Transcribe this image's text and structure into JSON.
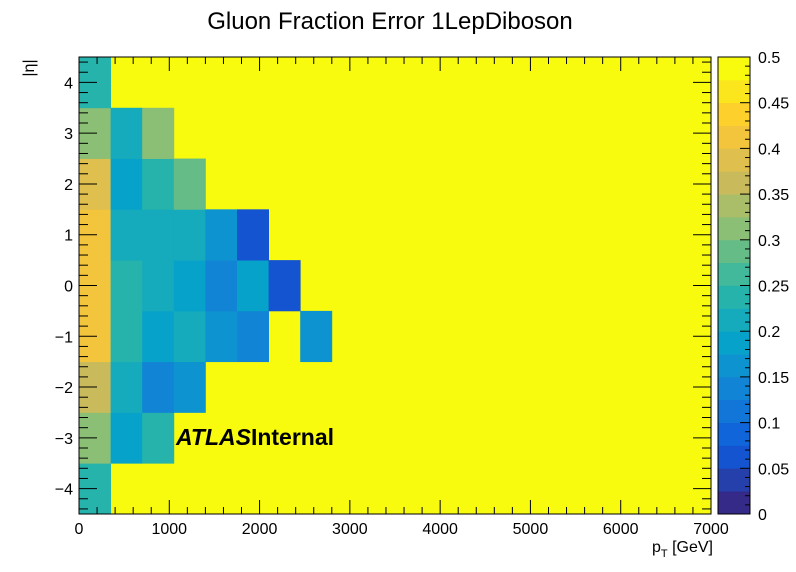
{
  "chart_data": {
    "type": "heatmap",
    "title": "Gluon Fraction Error 1LepDiboson",
    "xlabel": {
      "main": "p",
      "sub": "T",
      "unit": " [GeV]"
    },
    "ylabel": "|η|",
    "xlim": [
      0,
      7000
    ],
    "ylim": [
      -4.5,
      4.5
    ],
    "zlim": [
      0,
      0.5
    ],
    "x_ticks": [
      0,
      1000,
      2000,
      3000,
      4000,
      5000,
      6000,
      7000
    ],
    "y_ticks": [
      -4,
      -3,
      -2,
      -1,
      0,
      1,
      2,
      3,
      4
    ],
    "z_ticks": [
      0,
      0.05,
      0.1,
      0.15,
      0.2,
      0.25,
      0.3,
      0.35,
      0.4,
      0.45,
      0.5
    ],
    "x_tick_labels": [
      "0",
      "1000",
      "2000",
      "3000",
      "4000",
      "5000",
      "6000",
      "7000"
    ],
    "y_tick_labels": [
      "−4",
      "−3",
      "−2",
      "−1",
      "0",
      "1",
      "2",
      "3",
      "4"
    ],
    "z_tick_labels": [
      "0",
      "0.05",
      "0.1",
      "0.15",
      "0.2",
      "0.25",
      "0.3",
      "0.35",
      "0.4",
      "0.45",
      "0.5"
    ],
    "x_edges": [
      0,
      350,
      700,
      1050,
      1400,
      1750,
      2100,
      2450,
      2800,
      7000
    ],
    "y_edges": [
      -4.5,
      -3.5,
      -2.5,
      -1.5,
      -0.5,
      0.5,
      1.5,
      2.5,
      3.5,
      4.5
    ],
    "default_value": 0.5,
    "cells": [
      {
        "x": [
          0,
          350
        ],
        "y": [
          -4.5,
          -3.5
        ],
        "z": 0.24
      },
      {
        "x": [
          0,
          350
        ],
        "y": [
          -3.5,
          -2.5
        ],
        "z": 0.3
      },
      {
        "x": [
          350,
          700
        ],
        "y": [
          -3.5,
          -2.5
        ],
        "z": 0.19
      },
      {
        "x": [
          700,
          1050
        ],
        "y": [
          -3.5,
          -2.5
        ],
        "z": 0.23
      },
      {
        "x": [
          0,
          350
        ],
        "y": [
          -2.5,
          -1.5
        ],
        "z": 0.36
      },
      {
        "x": [
          350,
          700
        ],
        "y": [
          -2.5,
          -1.5
        ],
        "z": 0.21
      },
      {
        "x": [
          700,
          1050
        ],
        "y": [
          -2.5,
          -1.5
        ],
        "z": 0.14
      },
      {
        "x": [
          1050,
          1400
        ],
        "y": [
          -2.5,
          -1.5
        ],
        "z": 0.17
      },
      {
        "x": [
          0,
          350
        ],
        "y": [
          -1.5,
          -0.5
        ],
        "z": 0.4
      },
      {
        "x": [
          350,
          700
        ],
        "y": [
          -1.5,
          -0.5
        ],
        "z": 0.24
      },
      {
        "x": [
          700,
          1050
        ],
        "y": [
          -1.5,
          -0.5
        ],
        "z": 0.18
      },
      {
        "x": [
          1050,
          1400
        ],
        "y": [
          -1.5,
          -0.5
        ],
        "z": 0.22
      },
      {
        "x": [
          1400,
          1750
        ],
        "y": [
          -1.5,
          -0.5
        ],
        "z": 0.17
      },
      {
        "x": [
          1750,
          2100
        ],
        "y": [
          -1.5,
          -0.5
        ],
        "z": 0.13
      },
      {
        "x": [
          2450,
          2800
        ],
        "y": [
          -1.5,
          -0.5
        ],
        "z": 0.15
      },
      {
        "x": [
          0,
          350
        ],
        "y": [
          -0.5,
          0.5
        ],
        "z": 0.4
      },
      {
        "x": [
          350,
          700
        ],
        "y": [
          -0.5,
          0.5
        ],
        "z": 0.24
      },
      {
        "x": [
          700,
          1050
        ],
        "y": [
          -0.5,
          0.5
        ],
        "z": 0.21
      },
      {
        "x": [
          1050,
          1400
        ],
        "y": [
          -0.5,
          0.5
        ],
        "z": 0.18
      },
      {
        "x": [
          1400,
          1750
        ],
        "y": [
          -0.5,
          0.5
        ],
        "z": 0.14
      },
      {
        "x": [
          1750,
          2100
        ],
        "y": [
          -0.5,
          0.5
        ],
        "z": 0.19
      },
      {
        "x": [
          2100,
          2450
        ],
        "y": [
          -0.5,
          0.5
        ],
        "z": 0.06
      },
      {
        "x": [
          0,
          350
        ],
        "y": [
          0.5,
          1.5
        ],
        "z": 0.41
      },
      {
        "x": [
          350,
          700
        ],
        "y": [
          0.5,
          1.5
        ],
        "z": 0.21
      },
      {
        "x": [
          700,
          1050
        ],
        "y": [
          0.5,
          1.5
        ],
        "z": 0.21
      },
      {
        "x": [
          1050,
          1400
        ],
        "y": [
          0.5,
          1.5
        ],
        "z": 0.21
      },
      {
        "x": [
          1400,
          1750
        ],
        "y": [
          0.5,
          1.5
        ],
        "z": 0.17
      },
      {
        "x": [
          1750,
          2100
        ],
        "y": [
          0.5,
          1.5
        ],
        "z": 0.07
      },
      {
        "x": [
          0,
          350
        ],
        "y": [
          1.5,
          2.5
        ],
        "z": 0.38
      },
      {
        "x": [
          350,
          700
        ],
        "y": [
          1.5,
          2.5
        ],
        "z": 0.18
      },
      {
        "x": [
          700,
          1050
        ],
        "y": [
          1.5,
          2.5
        ],
        "z": 0.24
      },
      {
        "x": [
          1050,
          1400
        ],
        "y": [
          1.5,
          2.5
        ],
        "z": 0.29
      },
      {
        "x": [
          0,
          350
        ],
        "y": [
          2.5,
          3.5
        ],
        "z": 0.3
      },
      {
        "x": [
          350,
          700
        ],
        "y": [
          2.5,
          3.5
        ],
        "z": 0.21
      },
      {
        "x": [
          700,
          1050
        ],
        "y": [
          2.5,
          3.5
        ],
        "z": 0.32
      },
      {
        "x": [
          0,
          350
        ],
        "y": [
          3.5,
          4.5
        ],
        "z": 0.24
      }
    ],
    "annotation": {
      "bold_italic": "ATLAS",
      "bold": "Internal"
    },
    "colorbar": true
  }
}
